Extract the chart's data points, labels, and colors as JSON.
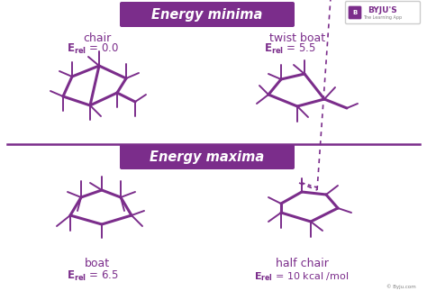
{
  "bg_color": "#ffffff",
  "purple": "#7b2d8b",
  "lw": 1.4,
  "lw_thick": 2.2,
  "minima_label": "Energy minima",
  "maxima_label": "Energy maxima",
  "chair_label": "chair",
  "twist_boat_label": "twist boat",
  "boat_label": "boat",
  "half_chair_label": "half chair",
  "byju_text": "© Byju.com",
  "title_facecolor": "#7b2d8b",
  "border_color": "#cccccc"
}
